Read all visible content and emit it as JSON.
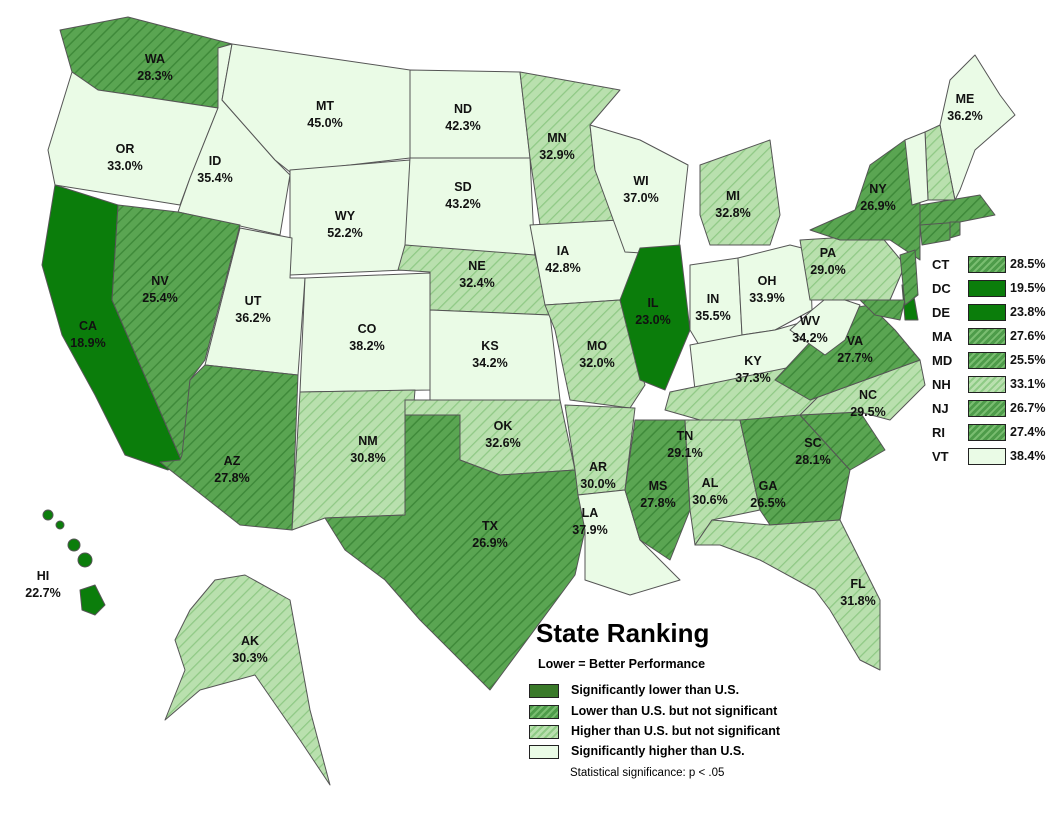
{
  "legend": {
    "title": "State Ranking",
    "subtitle": "Lower = Better Performance",
    "items": [
      {
        "category": "sig_lower",
        "label": "Significantly lower than U.S.",
        "color": "#3a7a2a"
      },
      {
        "category": "lower",
        "label": "Lower than U.S. but not significant",
        "color": "#5aa552"
      },
      {
        "category": "higher",
        "label": "Higher than U.S. but not significant",
        "color": "#a9d99d"
      },
      {
        "category": "sig_higher",
        "label": "Significantly higher than U.S.",
        "color": "#eafbe6"
      }
    ],
    "note": "Statistical significance: p < .05"
  },
  "states": [
    {
      "abbr": "WA",
      "value": "28.3%",
      "category": "lower"
    },
    {
      "abbr": "OR",
      "value": "33.0%",
      "category": "sig_higher"
    },
    {
      "abbr": "CA",
      "value": "18.9%",
      "category": "sig_lower"
    },
    {
      "abbr": "ID",
      "value": "35.4%",
      "category": "sig_higher"
    },
    {
      "abbr": "NV",
      "value": "25.4%",
      "category": "lower"
    },
    {
      "abbr": "MT",
      "value": "45.0%",
      "category": "sig_higher"
    },
    {
      "abbr": "WY",
      "value": "52.2%",
      "category": "sig_higher"
    },
    {
      "abbr": "UT",
      "value": "36.2%",
      "category": "sig_higher"
    },
    {
      "abbr": "AZ",
      "value": "27.8%",
      "category": "lower"
    },
    {
      "abbr": "CO",
      "value": "38.2%",
      "category": "sig_higher"
    },
    {
      "abbr": "NM",
      "value": "30.8%",
      "category": "higher"
    },
    {
      "abbr": "ND",
      "value": "42.3%",
      "category": "sig_higher"
    },
    {
      "abbr": "SD",
      "value": "43.2%",
      "category": "sig_higher"
    },
    {
      "abbr": "NE",
      "value": "32.4%",
      "category": "higher"
    },
    {
      "abbr": "KS",
      "value": "34.2%",
      "category": "sig_higher"
    },
    {
      "abbr": "OK",
      "value": "32.6%",
      "category": "higher"
    },
    {
      "abbr": "TX",
      "value": "26.9%",
      "category": "lower"
    },
    {
      "abbr": "MN",
      "value": "32.9%",
      "category": "higher"
    },
    {
      "abbr": "IA",
      "value": "42.8%",
      "category": "sig_higher"
    },
    {
      "abbr": "MO",
      "value": "32.0%",
      "category": "higher"
    },
    {
      "abbr": "AR",
      "value": "30.0%",
      "category": "higher"
    },
    {
      "abbr": "LA",
      "value": "37.9%",
      "category": "sig_higher"
    },
    {
      "abbr": "WI",
      "value": "37.0%",
      "category": "sig_higher"
    },
    {
      "abbr": "IL",
      "value": "23.0%",
      "category": "sig_lower"
    },
    {
      "abbr": "MI",
      "value": "32.8%",
      "category": "higher"
    },
    {
      "abbr": "IN",
      "value": "35.5%",
      "category": "sig_higher"
    },
    {
      "abbr": "OH",
      "value": "33.9%",
      "category": "sig_higher"
    },
    {
      "abbr": "KY",
      "value": "37.3%",
      "category": "sig_higher"
    },
    {
      "abbr": "TN",
      "value": "29.1%",
      "category": "higher"
    },
    {
      "abbr": "MS",
      "value": "27.8%",
      "category": "lower"
    },
    {
      "abbr": "AL",
      "value": "30.6%",
      "category": "higher"
    },
    {
      "abbr": "GA",
      "value": "26.5%",
      "category": "lower"
    },
    {
      "abbr": "FL",
      "value": "31.8%",
      "category": "higher"
    },
    {
      "abbr": "SC",
      "value": "28.1%",
      "category": "lower"
    },
    {
      "abbr": "NC",
      "value": "29.5%",
      "category": "higher"
    },
    {
      "abbr": "VA",
      "value": "27.7%",
      "category": "lower"
    },
    {
      "abbr": "WV",
      "value": "34.2%",
      "category": "sig_higher"
    },
    {
      "abbr": "PA",
      "value": "29.0%",
      "category": "higher"
    },
    {
      "abbr": "NY",
      "value": "26.9%",
      "category": "lower"
    },
    {
      "abbr": "ME",
      "value": "36.2%",
      "category": "sig_higher"
    },
    {
      "abbr": "AK",
      "value": "30.3%",
      "category": "higher"
    },
    {
      "abbr": "HI",
      "value": "22.7%",
      "category": "sig_lower"
    }
  ],
  "small_states": [
    {
      "abbr": "CT",
      "value": "28.5%",
      "category": "lower"
    },
    {
      "abbr": "DC",
      "value": "19.5%",
      "category": "sig_lower"
    },
    {
      "abbr": "DE",
      "value": "23.8%",
      "category": "sig_lower"
    },
    {
      "abbr": "MA",
      "value": "27.6%",
      "category": "lower"
    },
    {
      "abbr": "MD",
      "value": "25.5%",
      "category": "lower"
    },
    {
      "abbr": "NH",
      "value": "33.1%",
      "category": "higher"
    },
    {
      "abbr": "NJ",
      "value": "26.7%",
      "category": "lower"
    },
    {
      "abbr": "RI",
      "value": "27.4%",
      "category": "lower"
    },
    {
      "abbr": "VT",
      "value": "38.4%",
      "category": "sig_higher"
    }
  ]
}
